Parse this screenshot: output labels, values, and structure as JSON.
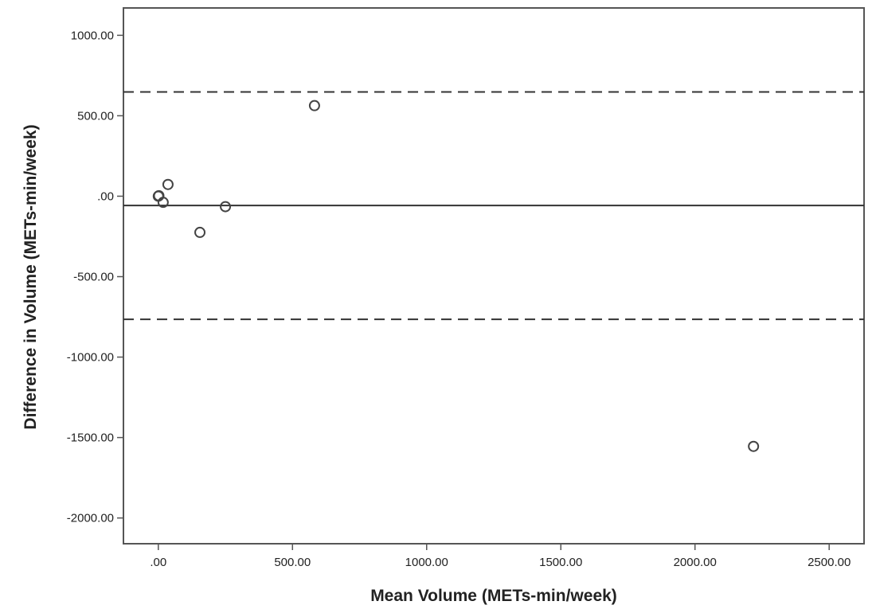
{
  "chart_data": {
    "type": "scatter",
    "title": "",
    "xlabel": "Mean Volume (METs-min/week)",
    "ylabel": "Difference in Volume (METs-min/week)",
    "xlim": [
      -130,
      2630
    ],
    "ylim": [
      -2160,
      1170
    ],
    "x_ticks": [
      0,
      500,
      1000,
      1500,
      2000,
      2500
    ],
    "x_tick_labels": [
      ".00",
      "500.00",
      "1000.00",
      "1500.00",
      "2000.00",
      "2500.00"
    ],
    "y_ticks": [
      1000,
      500,
      0,
      -500,
      -1000,
      -1500,
      -2000
    ],
    "y_tick_labels": [
      "1000.00",
      "500.00",
      ".00",
      "-500.00",
      "-1000.00",
      "-1500.00",
      "-2000.00"
    ],
    "grid": false,
    "legend": "none",
    "points": [
      {
        "x": 0,
        "y": 0
      },
      {
        "x": 2,
        "y": 3
      },
      {
        "x": 18,
        "y": -38
      },
      {
        "x": 36,
        "y": 73
      },
      {
        "x": 155,
        "y": -225
      },
      {
        "x": 250,
        "y": -65
      },
      {
        "x": 582,
        "y": 563
      },
      {
        "x": 2218,
        "y": -1555
      }
    ],
    "reference_lines": [
      {
        "kind": "mean",
        "y": -58,
        "style": "solid"
      },
      {
        "kind": "upper-limit",
        "y": 648,
        "style": "dashed"
      },
      {
        "kind": "lower-limit",
        "y": -765,
        "style": "dashed"
      }
    ],
    "colors": {
      "frame": "#555555",
      "marker": "#444444",
      "line": "#333333",
      "text": "#222222"
    }
  }
}
